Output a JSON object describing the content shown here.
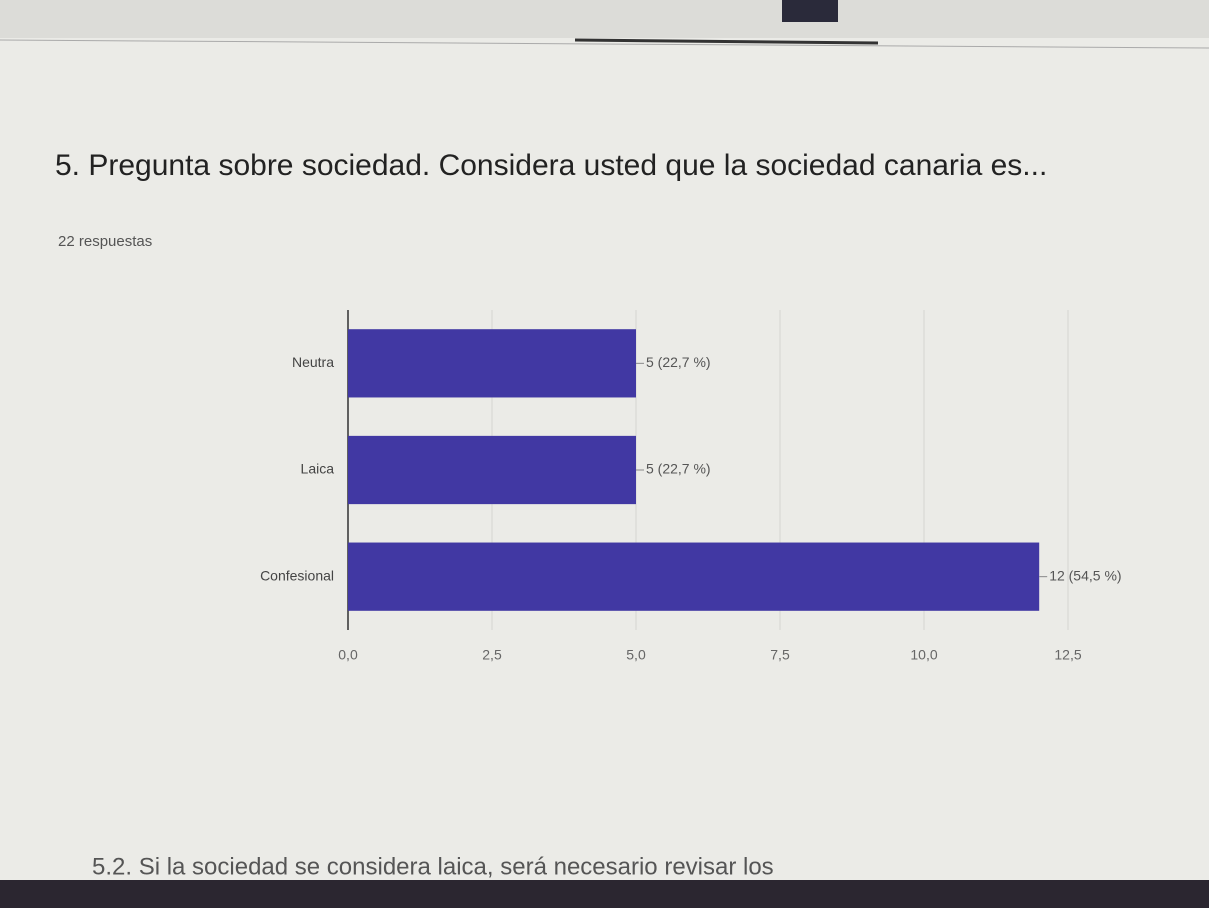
{
  "chart_data": {
    "type": "bar",
    "orientation": "horizontal",
    "title": "5. Pregunta sobre sociedad. Considera usted que la sociedad canaria es...",
    "subtitle": "22 respuestas",
    "categories": [
      "Neutra",
      "Laica",
      "Confesional"
    ],
    "values": [
      5,
      5,
      12
    ],
    "value_labels": [
      "5 (22,7 %)",
      "5 (22,7 %)",
      "12 (54,5 %)"
    ],
    "color": "#4138a3",
    "xlim": [
      0,
      12.5
    ],
    "xticks": [
      {
        "value": 0,
        "label": "0,0"
      },
      {
        "value": 2.5,
        "label": "2,5"
      },
      {
        "value": 5,
        "label": "5,0"
      },
      {
        "value": 7.5,
        "label": "7,5"
      },
      {
        "value": 10,
        "label": "10,0"
      },
      {
        "value": 12.5,
        "label": "12,5"
      }
    ],
    "grid": true
  },
  "next_question": "5.2. Si la sociedad se considera laica, será necesario revisar los"
}
